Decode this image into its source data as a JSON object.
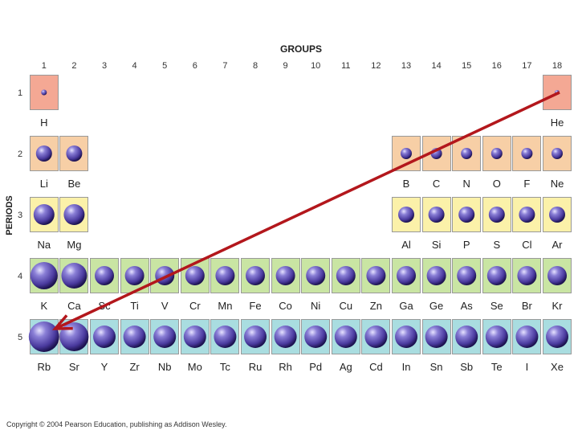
{
  "title": "GROUPS",
  "axis_label": "PERIODS",
  "groups": [
    "1",
    "2",
    "3",
    "4",
    "5",
    "6",
    "7",
    "8",
    "9",
    "10",
    "11",
    "12",
    "13",
    "14",
    "15",
    "16",
    "17",
    "18"
  ],
  "periods": [
    "1",
    "2",
    "3",
    "4",
    "5"
  ],
  "colors": {
    "period1": "#f4a894",
    "period2": "#f7cfa6",
    "period3": "#fbf1a9",
    "period4": "#c9e5a3",
    "period5": "#a9dde0",
    "arrow": "#b3171c",
    "atom": "#4a3a9e"
  },
  "elements": [
    {
      "symbol": "H",
      "group": 1,
      "period": 1
    },
    {
      "symbol": "He",
      "group": 18,
      "period": 1
    },
    {
      "symbol": "Li",
      "group": 1,
      "period": 2
    },
    {
      "symbol": "Be",
      "group": 2,
      "period": 2
    },
    {
      "symbol": "B",
      "group": 13,
      "period": 2
    },
    {
      "symbol": "C",
      "group": 14,
      "period": 2
    },
    {
      "symbol": "N",
      "group": 15,
      "period": 2
    },
    {
      "symbol": "O",
      "group": 16,
      "period": 2
    },
    {
      "symbol": "F",
      "group": 17,
      "period": 2
    },
    {
      "symbol": "Ne",
      "group": 18,
      "period": 2
    },
    {
      "symbol": "Na",
      "group": 1,
      "period": 3
    },
    {
      "symbol": "Mg",
      "group": 2,
      "period": 3
    },
    {
      "symbol": "Al",
      "group": 13,
      "period": 3
    },
    {
      "symbol": "Si",
      "group": 14,
      "period": 3
    },
    {
      "symbol": "P",
      "group": 15,
      "period": 3
    },
    {
      "symbol": "S",
      "group": 16,
      "period": 3
    },
    {
      "symbol": "Cl",
      "group": 17,
      "period": 3
    },
    {
      "symbol": "Ar",
      "group": 18,
      "period": 3
    },
    {
      "symbol": "K",
      "group": 1,
      "period": 4
    },
    {
      "symbol": "Ca",
      "group": 2,
      "period": 4
    },
    {
      "symbol": "Sc",
      "group": 3,
      "period": 4
    },
    {
      "symbol": "Ti",
      "group": 4,
      "period": 4
    },
    {
      "symbol": "V",
      "group": 5,
      "period": 4
    },
    {
      "symbol": "Cr",
      "group": 6,
      "period": 4
    },
    {
      "symbol": "Mn",
      "group": 7,
      "period": 4
    },
    {
      "symbol": "Fe",
      "group": 8,
      "period": 4
    },
    {
      "symbol": "Co",
      "group": 9,
      "period": 4
    },
    {
      "symbol": "Ni",
      "group": 10,
      "period": 4
    },
    {
      "symbol": "Cu",
      "group": 11,
      "period": 4
    },
    {
      "symbol": "Zn",
      "group": 12,
      "period": 4
    },
    {
      "symbol": "Ga",
      "group": 13,
      "period": 4
    },
    {
      "symbol": "Ge",
      "group": 14,
      "period": 4
    },
    {
      "symbol": "As",
      "group": 15,
      "period": 4
    },
    {
      "symbol": "Se",
      "group": 16,
      "period": 4
    },
    {
      "symbol": "Br",
      "group": 17,
      "period": 4
    },
    {
      "symbol": "Kr",
      "group": 18,
      "period": 4
    },
    {
      "symbol": "Rb",
      "group": 1,
      "period": 5
    },
    {
      "symbol": "Sr",
      "group": 2,
      "period": 5
    },
    {
      "symbol": "Y",
      "group": 3,
      "period": 5
    },
    {
      "symbol": "Zr",
      "group": 4,
      "period": 5
    },
    {
      "symbol": "Nb",
      "group": 5,
      "period": 5
    },
    {
      "symbol": "Mo",
      "group": 6,
      "period": 5
    },
    {
      "symbol": "Tc",
      "group": 7,
      "period": 5
    },
    {
      "symbol": "Ru",
      "group": 8,
      "period": 5
    },
    {
      "symbol": "Rh",
      "group": 9,
      "period": 5
    },
    {
      "symbol": "Pd",
      "group": 10,
      "period": 5
    },
    {
      "symbol": "Ag",
      "group": 11,
      "period": 5
    },
    {
      "symbol": "Cd",
      "group": 12,
      "period": 5
    },
    {
      "symbol": "In",
      "group": 13,
      "period": 5
    },
    {
      "symbol": "Sn",
      "group": 14,
      "period": 5
    },
    {
      "symbol": "Sb",
      "group": 15,
      "period": 5
    },
    {
      "symbol": "Te",
      "group": 16,
      "period": 5
    },
    {
      "symbol": "I",
      "group": 17,
      "period": 5
    },
    {
      "symbol": "Xe",
      "group": 18,
      "period": 5
    }
  ],
  "arrow": {
    "from": "He",
    "to": "Rb"
  },
  "copyright": "Copyright © 2004 Pearson Education, publishing as Addison Wesley."
}
